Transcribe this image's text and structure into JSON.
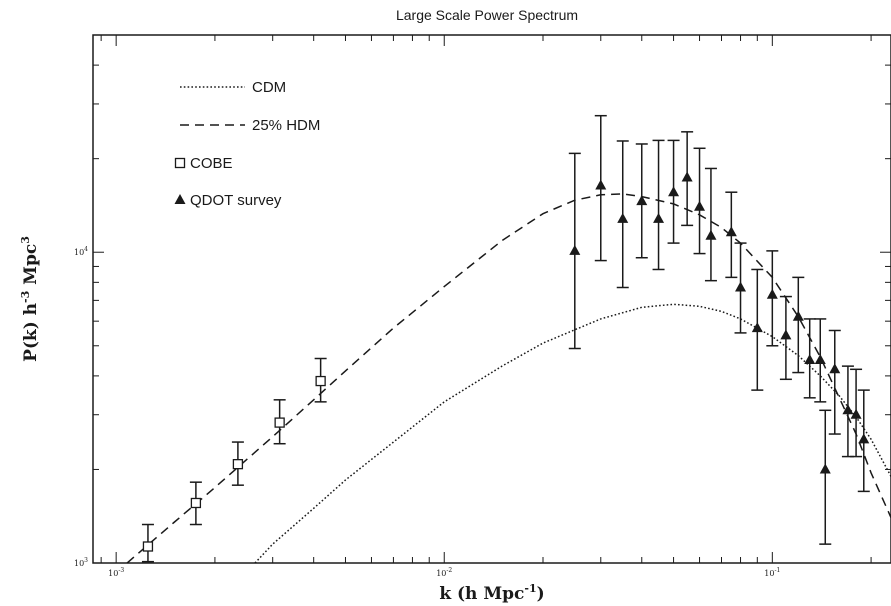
{
  "chart_data": {
    "type": "scatter",
    "title": "Large Scale Power Spectrum",
    "xlabel": "k (h Mpc⁻¹)",
    "ylabel": "P(k) h⁻³ Mpc³",
    "xscale": "log",
    "yscale": "log",
    "xlim": [
      0.00085,
      0.23
    ],
    "ylim": [
      1000,
      50000
    ],
    "grid": false,
    "legend_position": "top-left",
    "x_tick_labels": [
      {
        "value": 0.001,
        "base": "10",
        "exp": "-3"
      },
      {
        "value": 0.01,
        "base": "10",
        "exp": "-2"
      },
      {
        "value": 0.1,
        "base": "10",
        "exp": "-1"
      }
    ],
    "y_tick_labels": [
      {
        "value": 1000,
        "base": "10",
        "exp": "3"
      },
      {
        "value": 10000,
        "base": "10",
        "exp": "4"
      }
    ],
    "legend": [
      {
        "label": "CDM",
        "style": "dotted"
      },
      {
        "label": "25% HDM",
        "style": "dashed"
      },
      {
        "label": "COBE",
        "style": "open-square"
      },
      {
        "label": "QDOT survey",
        "style": "filled-triangle"
      }
    ],
    "series": [
      {
        "name": "CDM",
        "kind": "line",
        "style": "dotted",
        "points": [
          [
            0.00265,
            1000
          ],
          [
            0.003,
            1150
          ],
          [
            0.004,
            1500
          ],
          [
            0.005,
            1850
          ],
          [
            0.007,
            2450
          ],
          [
            0.01,
            3300
          ],
          [
            0.015,
            4300
          ],
          [
            0.02,
            5100
          ],
          [
            0.03,
            6100
          ],
          [
            0.04,
            6650
          ],
          [
            0.05,
            6800
          ],
          [
            0.06,
            6700
          ],
          [
            0.07,
            6450
          ],
          [
            0.08,
            6100
          ],
          [
            0.1,
            5350
          ],
          [
            0.12,
            4650
          ],
          [
            0.14,
            4000
          ],
          [
            0.16,
            3450
          ],
          [
            0.18,
            2950
          ],
          [
            0.2,
            2500
          ],
          [
            0.23,
            1900
          ]
        ]
      },
      {
        "name": "25% HDM",
        "kind": "line",
        "style": "dashed",
        "points": [
          [
            0.00108,
            1000
          ],
          [
            0.0015,
            1350
          ],
          [
            0.002,
            1750
          ],
          [
            0.003,
            2550
          ],
          [
            0.004,
            3350
          ],
          [
            0.005,
            4150
          ],
          [
            0.007,
            5700
          ],
          [
            0.01,
            7750
          ],
          [
            0.015,
            10900
          ],
          [
            0.02,
            13300
          ],
          [
            0.025,
            14700
          ],
          [
            0.03,
            15300
          ],
          [
            0.035,
            15400
          ],
          [
            0.04,
            15100
          ],
          [
            0.05,
            14300
          ],
          [
            0.06,
            13200
          ],
          [
            0.07,
            12000
          ],
          [
            0.08,
            10700
          ],
          [
            0.1,
            8300
          ],
          [
            0.12,
            6200
          ],
          [
            0.14,
            4600
          ],
          [
            0.16,
            3400
          ],
          [
            0.18,
            2600
          ],
          [
            0.2,
            1950
          ],
          [
            0.23,
            1400
          ]
        ]
      },
      {
        "name": "COBE",
        "kind": "points",
        "marker": "open-square",
        "points": [
          {
            "x": 0.00125,
            "y": 1130,
            "lo": 1010,
            "hi": 1330
          },
          {
            "x": 0.00175,
            "y": 1560,
            "lo": 1330,
            "hi": 1820
          },
          {
            "x": 0.00235,
            "y": 2080,
            "lo": 1780,
            "hi": 2450
          },
          {
            "x": 0.00315,
            "y": 2830,
            "lo": 2420,
            "hi": 3350
          },
          {
            "x": 0.0042,
            "y": 3850,
            "lo": 3300,
            "hi": 4550
          }
        ]
      },
      {
        "name": "QDOT survey",
        "kind": "points",
        "marker": "filled-triangle",
        "points": [
          {
            "x": 0.025,
            "y": 10100,
            "lo": 4900,
            "hi": 20800
          },
          {
            "x": 0.03,
            "y": 16400,
            "lo": 9400,
            "hi": 27500
          },
          {
            "x": 0.035,
            "y": 12800,
            "lo": 7700,
            "hi": 22800
          },
          {
            "x": 0.04,
            "y": 14600,
            "lo": 9600,
            "hi": 22300
          },
          {
            "x": 0.045,
            "y": 12800,
            "lo": 8800,
            "hi": 22900
          },
          {
            "x": 0.05,
            "y": 15600,
            "lo": 10700,
            "hi": 22900
          },
          {
            "x": 0.055,
            "y": 17400,
            "lo": 12200,
            "hi": 24400
          },
          {
            "x": 0.06,
            "y": 14000,
            "lo": 9900,
            "hi": 21600
          },
          {
            "x": 0.065,
            "y": 11300,
            "lo": 8100,
            "hi": 18600
          },
          {
            "x": 0.075,
            "y": 11600,
            "lo": 8300,
            "hi": 15600
          },
          {
            "x": 0.08,
            "y": 7700,
            "lo": 5500,
            "hi": 10700
          },
          {
            "x": 0.09,
            "y": 5700,
            "lo": 3600,
            "hi": 8800
          },
          {
            "x": 0.1,
            "y": 7300,
            "lo": 5000,
            "hi": 10100
          },
          {
            "x": 0.11,
            "y": 5400,
            "lo": 3900,
            "hi": 7200
          },
          {
            "x": 0.12,
            "y": 6200,
            "lo": 4100,
            "hi": 8300
          },
          {
            "x": 0.13,
            "y": 4500,
            "lo": 3400,
            "hi": 6100
          },
          {
            "x": 0.14,
            "y": 4500,
            "lo": 3300,
            "hi": 6100
          },
          {
            "x": 0.145,
            "y": 2000,
            "lo": 1150,
            "hi": 3100
          },
          {
            "x": 0.155,
            "y": 4200,
            "lo": 2600,
            "hi": 5600
          },
          {
            "x": 0.17,
            "y": 3100,
            "lo": 2200,
            "hi": 4300
          },
          {
            "x": 0.18,
            "y": 3000,
            "lo": 2200,
            "hi": 4200
          },
          {
            "x": 0.19,
            "y": 2500,
            "lo": 1700,
            "hi": 3600
          }
        ]
      }
    ]
  }
}
